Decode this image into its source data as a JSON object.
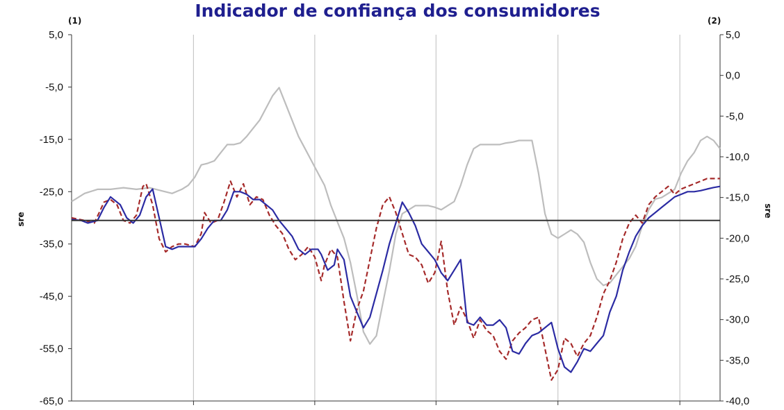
{
  "chart_data": {
    "type": "line",
    "title": "Indicador de confiança dos consumidores",
    "left_axis_marker": "(1)",
    "right_axis_marker": "(2)",
    "ylabel_left": "sre",
    "ylabel_right": "sre",
    "ylim_left": [
      -65,
      5
    ],
    "ylim_right": [
      -40,
      5
    ],
    "yticks_left": [
      "5,0",
      "-5,0",
      "-15,0",
      "-25,0",
      "-35,0",
      "-45,0",
      "-55,0",
      "-65,0"
    ],
    "yticks_right": [
      "5,0",
      "0,0",
      "-5,0",
      "-10,0",
      "-15,0",
      "-20,0",
      "-25,0",
      "-30,0",
      "-35,0",
      "-40,0"
    ],
    "x_range": [
      0,
      100
    ],
    "x_gridlines": [
      18.8,
      37.5,
      56.2,
      75,
      93.8
    ],
    "reference_line_left": -30.5,
    "grid": "vertical",
    "colors": {
      "title": "#1f1f8f",
      "blue_series": "#2b2ba3",
      "red_series": "#a52a2a",
      "grey_series": "#bdbdbd",
      "reference_line": "#333333",
      "gridline": "#c8c8c8"
    },
    "series": [
      {
        "key": "blue",
        "axis": "left",
        "style": "solid",
        "x": [
          0,
          1.5,
          2.5,
          4,
          5,
          6,
          7.5,
          8.5,
          9.5,
          10.5,
          11.5,
          12.5,
          13.5,
          14.5,
          15.5,
          16.5,
          17.5,
          19,
          20,
          21,
          22,
          23,
          24,
          25,
          26,
          27,
          28,
          29,
          30,
          31,
          32,
          33,
          34,
          35,
          36,
          37,
          38,
          38.5,
          39.5,
          40.5,
          41,
          42,
          43,
          44,
          45,
          46,
          47,
          48,
          49,
          50,
          51,
          52,
          53,
          54,
          55,
          56,
          57,
          58,
          59,
          60,
          61,
          62,
          63,
          64,
          65,
          66,
          67,
          68,
          69,
          70,
          71,
          72,
          73,
          74,
          75,
          76,
          77,
          78,
          79,
          80,
          81,
          82,
          83,
          84,
          85,
          86,
          87,
          88,
          89,
          90,
          91,
          92,
          93,
          94,
          95,
          96,
          97,
          98,
          99,
          100
        ],
        "y": [
          -30.3,
          -30.5,
          -31.0,
          -30.5,
          -28.0,
          -26.0,
          -27.5,
          -30.0,
          -31.0,
          -29.5,
          -26.0,
          -24.5,
          -30.0,
          -35.5,
          -36.0,
          -35.5,
          -35.5,
          -35.5,
          -34.0,
          -32.0,
          -30.5,
          -30.5,
          -28.5,
          -25.0,
          -25.0,
          -25.5,
          -26.5,
          -26.5,
          -27.5,
          -28.5,
          -30.5,
          -32.0,
          -33.5,
          -36.0,
          -37.0,
          -36.0,
          -36.0,
          -37.0,
          -40.0,
          -39.0,
          -36.0,
          -38.0,
          -45.0,
          -48.0,
          -51.0,
          -49.0,
          -44.5,
          -40.0,
          -35.0,
          -31.0,
          -27.0,
          -29.0,
          -31.5,
          -35.0,
          -36.5,
          -38.0,
          -40.5,
          -42.0,
          -40.0,
          -38.0,
          -50.0,
          -50.5,
          -49.0,
          -50.5,
          -50.5,
          -49.5,
          -51.0,
          -55.5,
          -56.0,
          -54.0,
          -52.5,
          -52.0,
          -51.0,
          -50.0,
          -55.0,
          -58.5,
          -59.5,
          -57.5,
          -55.0,
          -55.5,
          -54.0,
          -52.5,
          -48.0,
          -45.0,
          -40.0,
          -36.5,
          -33.5,
          -31.5,
          -30.0,
          -29.0,
          -28.0,
          -27.0,
          -26.0,
          -25.5,
          -25.0,
          -25.0,
          -24.8,
          -24.5,
          -24.2,
          -24.0
        ]
      },
      {
        "key": "red",
        "axis": "left",
        "style": "dashed",
        "x": [
          0,
          2,
          3.5,
          5,
          6,
          7,
          8,
          9,
          10,
          11,
          11.5,
          12.5,
          13.5,
          14.5,
          15.5,
          16.5,
          17.5,
          19,
          20,
          20.5,
          21.5,
          22.5,
          23.5,
          24.5,
          25.5,
          26.5,
          27.5,
          28.5,
          29.5,
          30.5,
          31.5,
          32.5,
          33.5,
          34.5,
          35.5,
          36.5,
          37.5,
          38.5,
          39,
          40,
          41,
          42,
          43,
          44,
          45,
          46,
          47,
          48,
          49,
          50,
          51,
          52,
          53,
          54,
          55,
          56,
          57,
          58,
          59,
          60,
          61,
          62,
          63,
          64,
          65,
          66,
          67,
          68,
          69,
          70,
          71,
          72,
          73,
          74,
          75,
          76,
          77,
          78,
          79,
          80,
          81,
          82,
          83,
          84,
          85,
          86,
          87,
          88,
          89,
          90,
          91,
          92,
          93,
          94,
          95,
          96,
          97,
          98,
          99,
          100
        ],
        "y": [
          -30.0,
          -30.5,
          -31.0,
          -27.0,
          -26.5,
          -27.5,
          -30.5,
          -31.0,
          -29.5,
          -24.0,
          -23.5,
          -27.5,
          -34.0,
          -36.5,
          -35.5,
          -35.0,
          -35.0,
          -35.5,
          -33.0,
          -29.0,
          -31.0,
          -30.5,
          -27.0,
          -23.0,
          -26.0,
          -23.5,
          -27.5,
          -26.0,
          -26.5,
          -29.5,
          -31.5,
          -33.0,
          -36.0,
          -38.0,
          -37.0,
          -35.5,
          -37.5,
          -42.0,
          -39.0,
          -36.0,
          -37.5,
          -46.0,
          -53.5,
          -47.5,
          -44.0,
          -38.0,
          -32.0,
          -27.5,
          -26.0,
          -29.0,
          -33.0,
          -37.0,
          -37.5,
          -39.0,
          -42.5,
          -40.5,
          -34.5,
          -44.0,
          -50.5,
          -47.0,
          -49.5,
          -53.0,
          -49.5,
          -51.5,
          -52.5,
          -55.5,
          -57.0,
          -53.5,
          -52.0,
          -51.0,
          -49.5,
          -49.0,
          -55.0,
          -61.0,
          -59.0,
          -53.0,
          -54.0,
          -56.5,
          -54.0,
          -52.5,
          -49.0,
          -44.5,
          -42.0,
          -38.5,
          -34.0,
          -31.0,
          -29.5,
          -31.0,
          -27.5,
          -26.0,
          -25.0,
          -24.0,
          -25.5,
          -24.5,
          -24.0,
          -23.5,
          -23.0,
          -22.5,
          -22.5,
          -22.5
        ]
      },
      {
        "key": "grey",
        "axis": "right",
        "style": "solid",
        "x": [
          0,
          2,
          4,
          6,
          8,
          10,
          12,
          14,
          15.5,
          17,
          18,
          19,
          20,
          21,
          22,
          23,
          24,
          25,
          26,
          27,
          28,
          29,
          30,
          31,
          32,
          33,
          34,
          35,
          36,
          37,
          38,
          39,
          40,
          41,
          42,
          43,
          44,
          45,
          46,
          47,
          48,
          49,
          50,
          51,
          52,
          53,
          54,
          55,
          56,
          57,
          58,
          59,
          60,
          61,
          62,
          63,
          64,
          65,
          66,
          67,
          68,
          69,
          70,
          71,
          72,
          73,
          74,
          75,
          76,
          77,
          78,
          79,
          80,
          81,
          82,
          83,
          84,
          85,
          86,
          87,
          88,
          89,
          90,
          91,
          92,
          93,
          94,
          95,
          96,
          97,
          98,
          99,
          100
        ],
        "y": [
          -15.5,
          -14.5,
          -14.0,
          -14.0,
          -13.8,
          -14.0,
          -13.8,
          -14.2,
          -14.5,
          -14.0,
          -13.5,
          -12.5,
          -11.0,
          -10.8,
          -10.5,
          -9.5,
          -8.5,
          -8.5,
          -8.3,
          -7.5,
          -6.5,
          -5.5,
          -4.0,
          -2.5,
          -1.5,
          -3.5,
          -5.5,
          -7.5,
          -9.0,
          -10.5,
          -12.0,
          -13.5,
          -16.0,
          -18.0,
          -20.0,
          -23.0,
          -27.0,
          -31.5,
          -33.0,
          -32.0,
          -28.0,
          -24.0,
          -19.5,
          -17.0,
          -16.5,
          -16.0,
          -16.0,
          -16.0,
          -16.2,
          -16.5,
          -16.0,
          -15.5,
          -13.5,
          -11.0,
          -9.0,
          -8.5,
          -8.5,
          -8.5,
          -8.5,
          -8.3,
          -8.2,
          -8.0,
          -8.0,
          -8.0,
          -12.0,
          -17.0,
          -19.5,
          -20.0,
          -19.5,
          -19.0,
          -19.5,
          -20.5,
          -23.0,
          -25.0,
          -25.8,
          -25.5,
          -24.5,
          -23.5,
          -22.5,
          -21.0,
          -18.5,
          -16.5,
          -15.2,
          -15.0,
          -14.5,
          -14.0,
          -12.0,
          -10.5,
          -9.5,
          -8.0,
          -7.5,
          -8.0,
          -9.0
        ]
      }
    ]
  }
}
